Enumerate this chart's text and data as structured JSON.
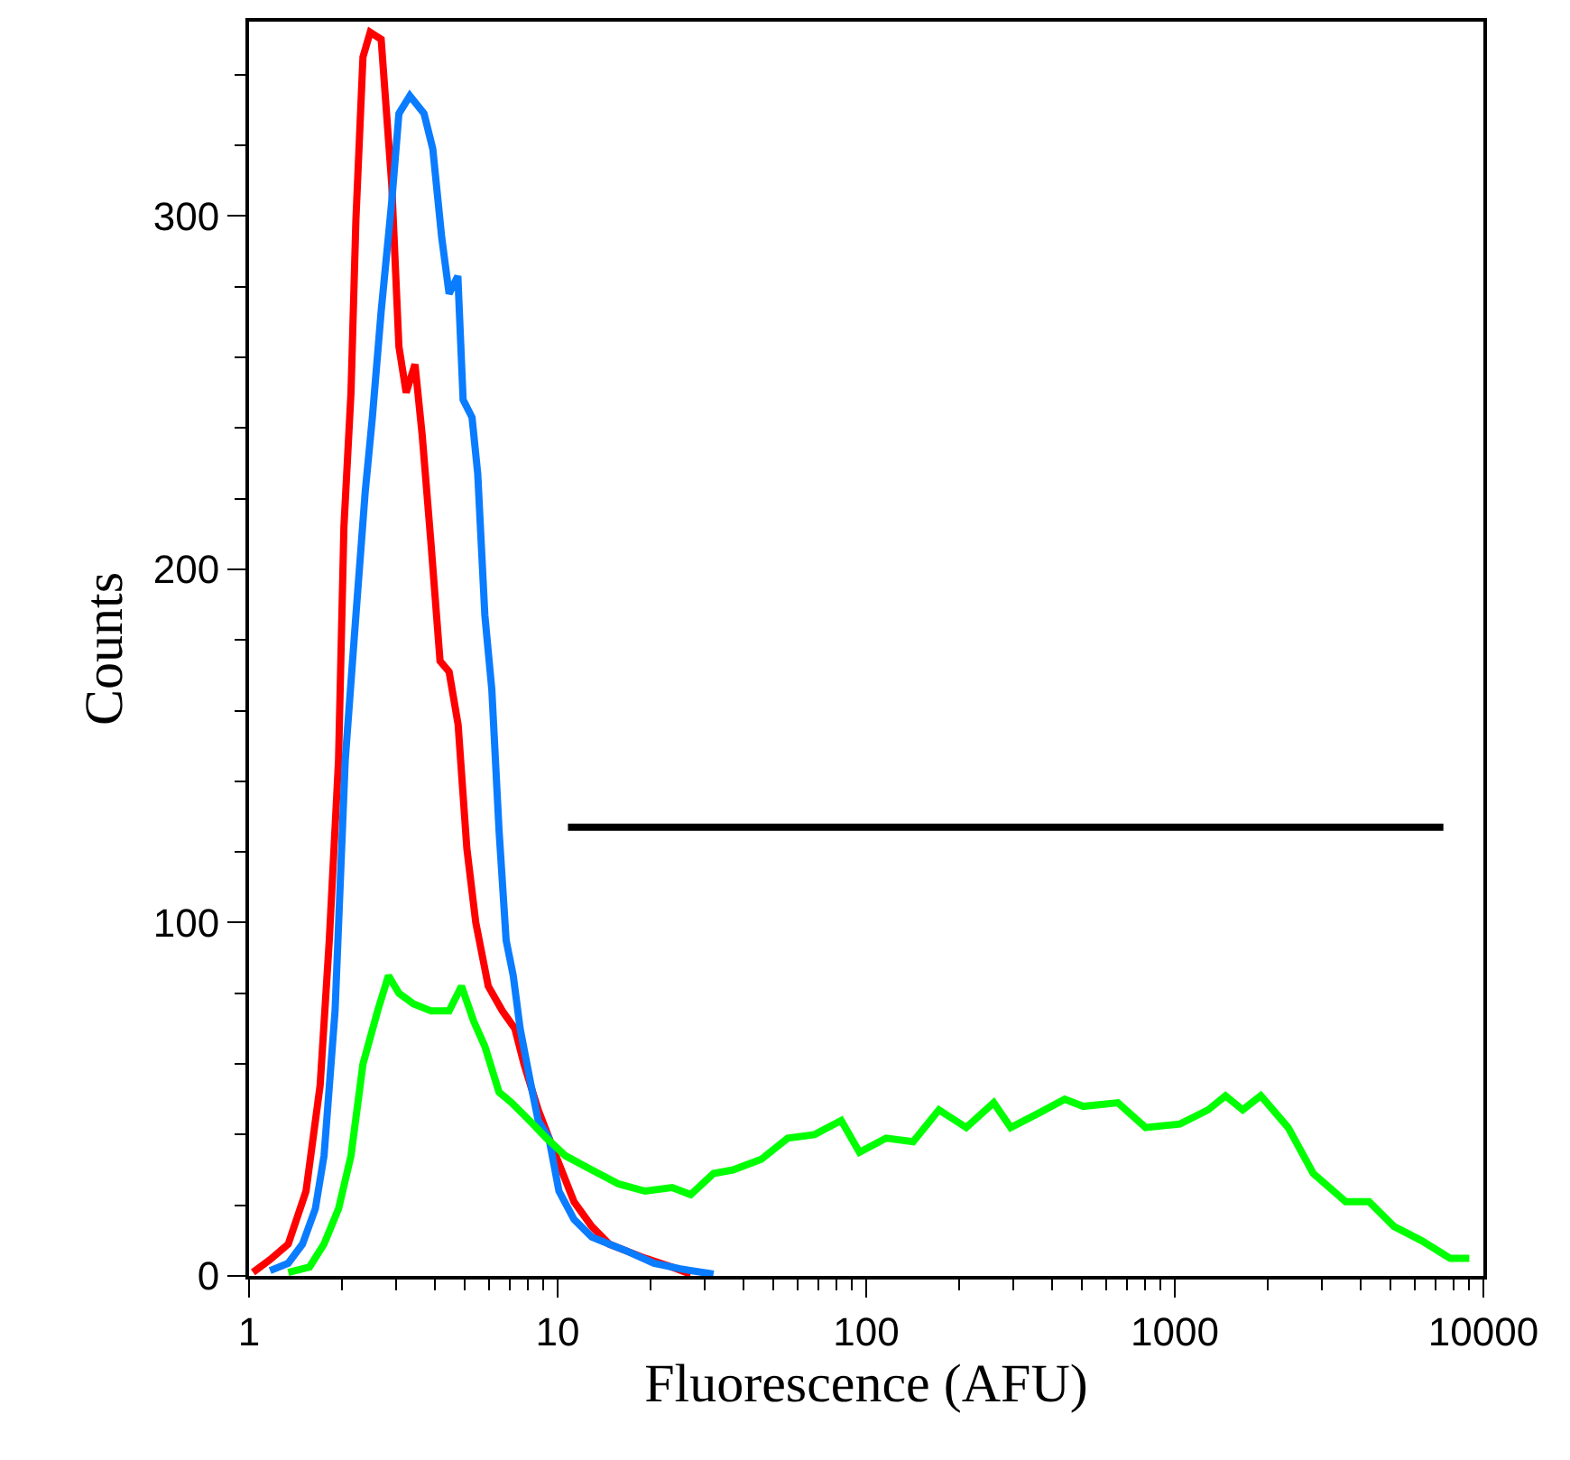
{
  "chart_data": {
    "type": "line",
    "xlabel": "Fluorescence (AFU)",
    "ylabel": "Counts",
    "log": "x",
    "xlim": [
      1,
      10000
    ],
    "xticks": [
      1,
      10,
      100,
      1000,
      10000
    ],
    "ylim": [
      0,
      355
    ],
    "yticks": [
      0,
      100,
      200,
      300
    ],
    "marker": "none",
    "line_style": "solid",
    "series": [
      {
        "color": "#ff0000",
        "x": [
          1.03,
          1.17,
          1.34,
          1.53,
          1.7,
          1.82,
          1.95,
          2.03,
          2.14,
          2.22,
          2.34,
          2.47,
          2.68,
          2.9,
          3.06,
          3.23,
          3.45,
          3.64,
          3.89,
          4.16,
          4.45,
          4.76,
          5.08,
          5.43,
          5.96,
          6.62,
          7.27,
          7.78,
          8.65,
          9.87,
          11.3,
          12.9,
          14.7,
          16.8,
          19.2,
          23.5,
          27
        ],
        "values": [
          1,
          4.6,
          9,
          24,
          54,
          95,
          146,
          212,
          250,
          299,
          345,
          352,
          350,
          309,
          263,
          250,
          258,
          238,
          207,
          174,
          171,
          156,
          121,
          100,
          82,
          75,
          70,
          60,
          47,
          34,
          21,
          14,
          9,
          7,
          5,
          2.5,
          0.5
        ]
      },
      {
        "color": "#0a7cff",
        "x": [
          1.17,
          1.34,
          1.49,
          1.64,
          1.75,
          1.9,
          2.05,
          2.22,
          2.38,
          2.51,
          2.68,
          2.9,
          3.06,
          3.32,
          3.69,
          3.94,
          4.21,
          4.45,
          4.75,
          4.94,
          5.28,
          5.51,
          5.81,
          6.12,
          6.46,
          6.81,
          7.18,
          7.56,
          8.2,
          8.65,
          9.37,
          10.1,
          11.3,
          12.9,
          14.7,
          16.8,
          20.5,
          25,
          32
        ],
        "values": [
          1.5,
          3.6,
          9,
          19,
          34,
          75,
          146,
          187,
          222,
          243,
          273,
          304,
          329,
          334,
          329,
          319,
          294,
          278,
          283,
          248,
          243,
          227,
          187,
          166,
          126,
          95,
          85,
          70,
          54,
          44,
          39,
          24,
          16,
          11,
          9,
          7,
          3.6,
          2,
          0.5
        ]
      },
      {
        "color": "#00ff00",
        "x": [
          1.34,
          1.57,
          1.75,
          1.95,
          2.14,
          2.34,
          2.61,
          2.83,
          3.06,
          3.41,
          3.89,
          4.45,
          4.88,
          5.35,
          5.81,
          6.46,
          7.1,
          8.1,
          9.2,
          10.6,
          12.9,
          15.8,
          19.2,
          23.5,
          27,
          32,
          37,
          45.7,
          55.7,
          68,
          83,
          95.1,
          116,
          142,
          172,
          211,
          259,
          294,
          361,
          440,
          505,
          654,
          804,
          1040,
          1282,
          1460,
          1660,
          1900,
          2330,
          2810,
          3580,
          4260,
          5130,
          6300,
          7800,
          9000
        ],
        "values": [
          1,
          2.5,
          9,
          19,
          34,
          60,
          75,
          85,
          80,
          77,
          75,
          75,
          82,
          72,
          65,
          52,
          49,
          44,
          39,
          34,
          30,
          26,
          24,
          25,
          23,
          29,
          30,
          33,
          39,
          40,
          44,
          35,
          39,
          38,
          47,
          42,
          49,
          42,
          46,
          50,
          48,
          49,
          42,
          43,
          47,
          51,
          47,
          51,
          42,
          29,
          21,
          21,
          14,
          10,
          5,
          5
        ]
      },
      {
        "color": "#000000",
        "x": [
          10.8,
          7420
        ],
        "values": [
          127,
          127
        ]
      }
    ]
  }
}
